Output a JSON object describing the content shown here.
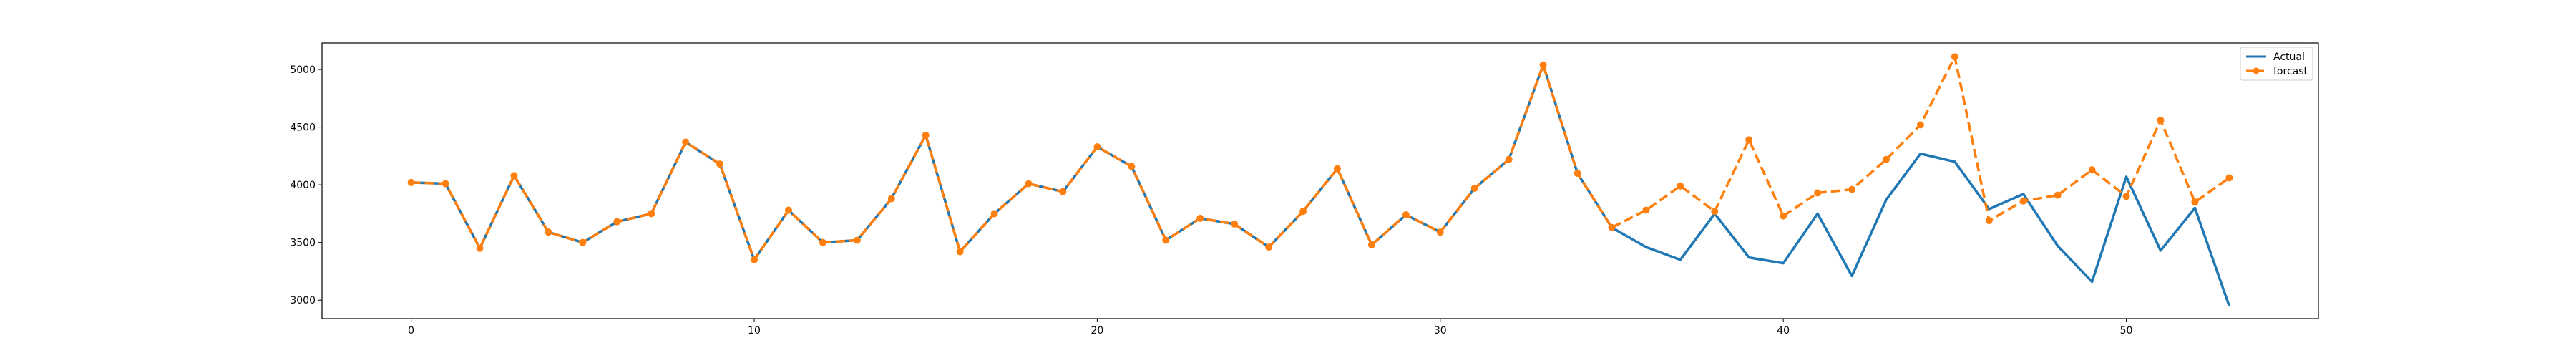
{
  "chart_data": {
    "type": "line",
    "title": "",
    "xlabel": "",
    "ylabel": "",
    "xlim": [
      -2.6,
      55.6
    ],
    "ylim": [
      2840,
      5230
    ],
    "x_ticks": [
      0,
      10,
      20,
      30,
      40,
      50
    ],
    "y_ticks": [
      3000,
      3500,
      4000,
      4500,
      5000
    ],
    "grid": false,
    "legend_position": "top-right",
    "series": [
      {
        "name": "Actual",
        "color": "#1f77b4",
        "style": "solid",
        "marker": "none",
        "x": [
          0,
          1,
          2,
          3,
          4,
          5,
          6,
          7,
          8,
          9,
          10,
          11,
          12,
          13,
          14,
          15,
          16,
          17,
          18,
          19,
          20,
          21,
          22,
          23,
          24,
          25,
          26,
          27,
          28,
          29,
          30,
          31,
          32,
          33,
          34,
          35,
          36,
          37,
          38,
          39,
          40,
          41,
          42,
          43,
          44,
          45,
          46,
          47,
          48,
          49,
          50,
          51,
          52,
          53
        ],
        "values": [
          4020,
          4010,
          3450,
          4080,
          3590,
          3500,
          3680,
          3750,
          4370,
          4180,
          3350,
          3780,
          3500,
          3520,
          3880,
          4430,
          3420,
          3750,
          4010,
          3940,
          4330,
          4160,
          3520,
          3710,
          3660,
          3460,
          3770,
          4140,
          3480,
          3740,
          3590,
          3970,
          4220,
          5040,
          4100,
          3630,
          3460,
          3350,
          3750,
          3370,
          3320,
          3750,
          3210,
          3870,
          4270,
          4200,
          3790,
          3920,
          3470,
          3160,
          4070,
          3430,
          3800,
          2950
        ]
      },
      {
        "name": "forcast",
        "color": "#ff7f0e",
        "style": "dashed",
        "marker": "circle",
        "x": [
          0,
          1,
          2,
          3,
          4,
          5,
          6,
          7,
          8,
          9,
          10,
          11,
          12,
          13,
          14,
          15,
          16,
          17,
          18,
          19,
          20,
          21,
          22,
          23,
          24,
          25,
          26,
          27,
          28,
          29,
          30,
          31,
          32,
          33,
          34,
          35,
          36,
          37,
          38,
          39,
          40,
          41,
          42,
          43,
          44,
          45,
          46,
          47,
          48,
          49,
          50,
          51,
          52,
          53
        ],
        "values": [
          4020,
          4010,
          3450,
          4080,
          3590,
          3500,
          3680,
          3750,
          4370,
          4180,
          3350,
          3780,
          3500,
          3520,
          3880,
          4430,
          3420,
          3750,
          4010,
          3940,
          4330,
          4160,
          3520,
          3710,
          3660,
          3460,
          3770,
          4140,
          3480,
          3740,
          3590,
          3970,
          4220,
          5040,
          4100,
          3630,
          3780,
          3990,
          3770,
          4390,
          3730,
          3930,
          3960,
          4220,
          4520,
          5110,
          3690,
          3860,
          3910,
          4130,
          3900,
          4560,
          3850,
          4060
        ]
      }
    ]
  }
}
